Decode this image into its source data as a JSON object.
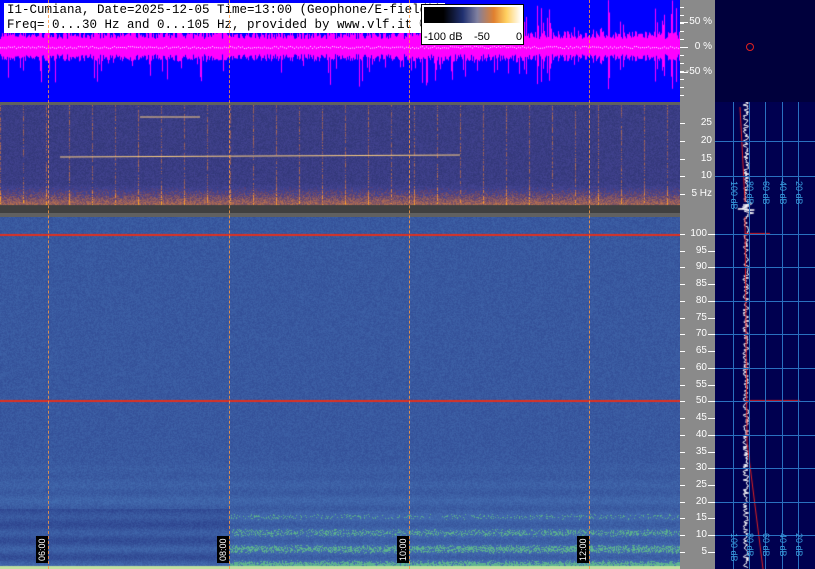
{
  "header": {
    "line1": "I1-Cumiana, Date=2025-12-05 Time=13:00 (Geophone/E-field))",
    "line2": "Freq= 0...30 Hz and 0...105 Hz, provided by www.vlf.it ©"
  },
  "colorbar": {
    "labels": [
      "-100 dB",
      "-50",
      "0"
    ]
  },
  "waveform_axis": [
    "50 %",
    "0 %",
    "-50 %"
  ],
  "top_spectrogram_axis": [
    "25",
    "20",
    "15",
    "10",
    "5 Hz"
  ],
  "bottom_spectrogram_axis": [
    "100",
    "95",
    "90",
    "85",
    "80",
    "75",
    "70",
    "65",
    "60",
    "55",
    "50",
    "45",
    "40",
    "35",
    "30",
    "25",
    "20",
    "15",
    "10",
    "5"
  ],
  "time_labels": [
    "06:00",
    "08:00",
    "10:00",
    "12:00"
  ],
  "db_labels": [
    "-100 dB",
    "-80 dB",
    "-60 dB",
    "-40 dB",
    "-20 dB"
  ],
  "colors": {
    "waveform_bg": "#0000ff",
    "waveform": "#ff00ff",
    "panel_bg": "#000050",
    "grid": "#2a70c0",
    "marker": "#ff2020",
    "time_grid": "#ff9a40"
  }
}
